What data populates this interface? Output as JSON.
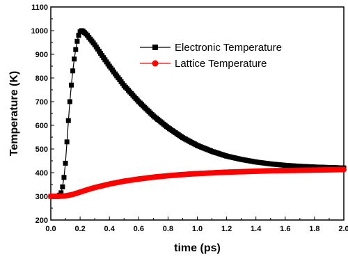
{
  "chart_data": {
    "type": "line",
    "title": "",
    "xlabel": "time (ps)",
    "ylabel": "Temperature (K)",
    "xlim": [
      0.0,
      2.0
    ],
    "ylim": [
      200,
      1100
    ],
    "x_ticks": [
      "0.0",
      "0.2",
      "0.4",
      "0.6",
      "0.8",
      "1.0",
      "1.2",
      "1.4",
      "1.6",
      "1.8",
      "2.0"
    ],
    "y_ticks": [
      "200",
      "300",
      "400",
      "500",
      "600",
      "700",
      "800",
      "900",
      "1000",
      "1100"
    ],
    "grid": false,
    "legend_position": "top-right",
    "series": [
      {
        "name": "Electronic Temperature",
        "color": "#000000",
        "marker": "square",
        "points": [
          [
            0.0,
            300
          ],
          [
            0.02,
            300
          ],
          [
            0.04,
            300
          ],
          [
            0.05,
            302
          ],
          [
            0.06,
            305
          ],
          [
            0.07,
            315
          ],
          [
            0.08,
            340
          ],
          [
            0.09,
            380
          ],
          [
            0.1,
            440
          ],
          [
            0.11,
            530
          ],
          [
            0.12,
            620
          ],
          [
            0.13,
            700
          ],
          [
            0.14,
            770
          ],
          [
            0.15,
            830
          ],
          [
            0.16,
            880
          ],
          [
            0.17,
            920
          ],
          [
            0.18,
            955
          ],
          [
            0.19,
            980
          ],
          [
            0.2,
            995
          ],
          [
            0.21,
            1000
          ],
          [
            0.22,
            998
          ],
          [
            0.25,
            980
          ],
          [
            0.3,
            940
          ],
          [
            0.35,
            895
          ],
          [
            0.4,
            850
          ],
          [
            0.5,
            768
          ],
          [
            0.6,
            700
          ],
          [
            0.7,
            640
          ],
          [
            0.8,
            590
          ],
          [
            0.9,
            548
          ],
          [
            1.0,
            515
          ],
          [
            1.1,
            490
          ],
          [
            1.2,
            470
          ],
          [
            1.3,
            456
          ],
          [
            1.4,
            445
          ],
          [
            1.5,
            437
          ],
          [
            1.6,
            431
          ],
          [
            1.7,
            427
          ],
          [
            1.8,
            424
          ],
          [
            1.9,
            422
          ],
          [
            2.0,
            420
          ]
        ]
      },
      {
        "name": "Lattice Temperature",
        "color": "#ff0000",
        "marker": "circle",
        "points": [
          [
            0.0,
            300
          ],
          [
            0.05,
            300
          ],
          [
            0.1,
            302
          ],
          [
            0.15,
            308
          ],
          [
            0.2,
            318
          ],
          [
            0.25,
            328
          ],
          [
            0.3,
            337
          ],
          [
            0.4,
            352
          ],
          [
            0.5,
            364
          ],
          [
            0.6,
            373
          ],
          [
            0.7,
            381
          ],
          [
            0.8,
            387
          ],
          [
            0.9,
            392
          ],
          [
            1.0,
            396
          ],
          [
            1.1,
            399
          ],
          [
            1.2,
            402
          ],
          [
            1.3,
            404
          ],
          [
            1.4,
            406
          ],
          [
            1.5,
            408
          ],
          [
            1.6,
            409
          ],
          [
            1.7,
            410
          ],
          [
            1.8,
            411
          ],
          [
            1.9,
            412
          ],
          [
            2.0,
            413
          ]
        ]
      }
    ]
  }
}
